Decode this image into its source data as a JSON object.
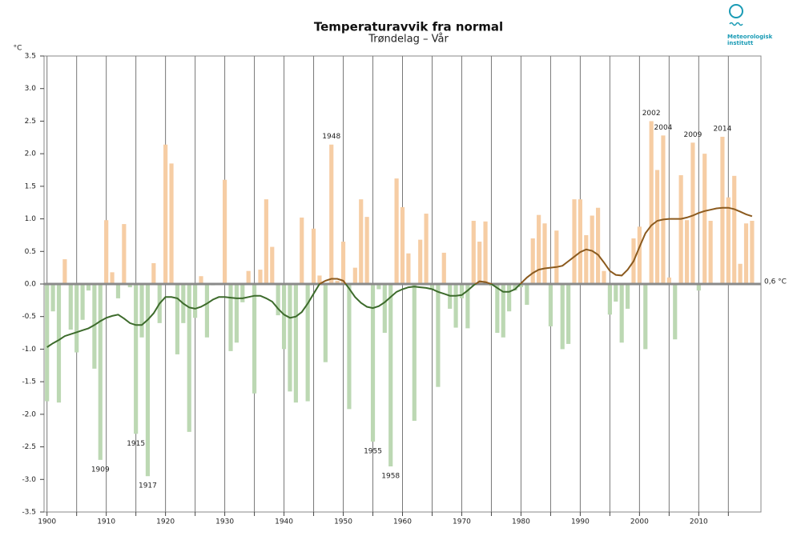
{
  "chart_data": {
    "type": "bar",
    "title": "Temperaturavvik fra normal",
    "subtitle": "Trøndelag – Vår",
    "y_unit": "°C",
    "reference_label": "0,6 °C",
    "logo": [
      "Meteorologisk",
      "institutt"
    ],
    "x": [
      1900,
      1901,
      1902,
      1903,
      1904,
      1905,
      1906,
      1907,
      1908,
      1909,
      1910,
      1911,
      1912,
      1913,
      1914,
      1915,
      1916,
      1917,
      1918,
      1919,
      1920,
      1921,
      1922,
      1923,
      1924,
      1925,
      1926,
      1927,
      1928,
      1929,
      1930,
      1931,
      1932,
      1933,
      1934,
      1935,
      1936,
      1937,
      1938,
      1939,
      1940,
      1941,
      1942,
      1943,
      1944,
      1945,
      1946,
      1947,
      1948,
      1949,
      1950,
      1951,
      1952,
      1953,
      1954,
      1955,
      1956,
      1957,
      1958,
      1959,
      1960,
      1961,
      1962,
      1963,
      1964,
      1965,
      1966,
      1967,
      1968,
      1969,
      1970,
      1971,
      1972,
      1973,
      1974,
      1975,
      1976,
      1977,
      1978,
      1979,
      1980,
      1981,
      1982,
      1983,
      1984,
      1985,
      1986,
      1987,
      1988,
      1989,
      1990,
      1991,
      1992,
      1993,
      1994,
      1995,
      1996,
      1997,
      1998,
      1999,
      2000,
      2001,
      2002,
      2003,
      2004,
      2005,
      2006,
      2007,
      2008,
      2009,
      2010,
      2011,
      2012,
      2013,
      2014,
      2015,
      2016,
      2017,
      2018,
      2019
    ],
    "values": [
      -1.8,
      -0.42,
      -1.82,
      0.38,
      -0.7,
      -1.05,
      -0.55,
      -0.1,
      -1.3,
      -2.7,
      0.98,
      0.18,
      -0.22,
      0.92,
      -0.05,
      -2.3,
      -0.82,
      -2.95,
      0.32,
      -0.6,
      2.14,
      1.85,
      -1.08,
      -0.6,
      -2.27,
      -0.52,
      0.12,
      -0.82,
      -0.02,
      0.0,
      1.6,
      -1.03,
      -0.9,
      -0.28,
      0.2,
      -1.68,
      0.22,
      1.3,
      0.57,
      -0.48,
      -1.0,
      -1.65,
      -1.82,
      1.02,
      -1.8,
      0.85,
      0.13,
      -1.2,
      2.14,
      0.05,
      0.65,
      -1.92,
      0.25,
      1.3,
      1.03,
      -2.42,
      -0.08,
      -0.75,
      -2.8,
      1.62,
      1.18,
      0.47,
      -2.1,
      0.68,
      1.08,
      -0.08,
      -1.58,
      0.48,
      -0.38,
      -0.67,
      -0.22,
      -0.68,
      0.97,
      0.65,
      0.96,
      -0.03,
      -0.75,
      -0.82,
      -0.42,
      -0.1,
      -0.05,
      -0.32,
      0.7,
      1.06,
      0.93,
      -0.65,
      0.82,
      -1.0,
      -0.92,
      1.3,
      1.3,
      0.75,
      1.05,
      1.17,
      0.2,
      -0.47,
      -0.27,
      -0.9,
      -0.38,
      0.7,
      0.88,
      -1.0,
      2.5,
      1.75,
      2.28,
      0.1,
      -0.85,
      1.67,
      0.98,
      2.17,
      -0.1,
      2.0,
      0.97,
      0.0,
      2.26,
      1.33,
      1.66,
      0.31,
      0.93,
      0.97
    ],
    "smoothed": [
      -0.97,
      -0.91,
      -0.86,
      -0.8,
      -0.77,
      -0.74,
      -0.71,
      -0.68,
      -0.63,
      -0.57,
      -0.52,
      -0.49,
      -0.47,
      -0.53,
      -0.6,
      -0.63,
      -0.63,
      -0.55,
      -0.45,
      -0.3,
      -0.2,
      -0.2,
      -0.22,
      -0.3,
      -0.36,
      -0.38,
      -0.35,
      -0.3,
      -0.24,
      -0.2,
      -0.2,
      -0.21,
      -0.22,
      -0.22,
      -0.2,
      -0.18,
      -0.18,
      -0.22,
      -0.27,
      -0.38,
      -0.47,
      -0.52,
      -0.5,
      -0.43,
      -0.3,
      -0.15,
      0.0,
      0.05,
      0.08,
      0.08,
      0.05,
      -0.07,
      -0.2,
      -0.29,
      -0.35,
      -0.37,
      -0.34,
      -0.28,
      -0.2,
      -0.12,
      -0.08,
      -0.05,
      -0.04,
      -0.05,
      -0.06,
      -0.08,
      -0.12,
      -0.15,
      -0.18,
      -0.18,
      -0.17,
      -0.1,
      -0.02,
      0.04,
      0.03,
      0.0,
      -0.06,
      -0.12,
      -0.12,
      -0.08,
      0.01,
      0.1,
      0.17,
      0.22,
      0.24,
      0.25,
      0.26,
      0.28,
      0.35,
      0.42,
      0.49,
      0.53,
      0.51,
      0.45,
      0.33,
      0.2,
      0.14,
      0.13,
      0.22,
      0.35,
      0.57,
      0.78,
      0.9,
      0.97,
      0.99,
      1.0,
      1.0,
      1.0,
      1.02,
      1.05,
      1.09,
      1.12,
      1.14,
      1.16,
      1.17,
      1.17,
      1.15,
      1.11,
      1.07,
      1.04
    ],
    "positive_color": "#f6cda4",
    "negative_color": "#bcd8b3",
    "line_positive_color": "#8b5a1e",
    "line_negative_color": "#3d6b2c",
    "annotations": [
      {
        "text": "1909",
        "x": 1909
      },
      {
        "text": "1915",
        "x": 1915
      },
      {
        "text": "1917",
        "x": 1917
      },
      {
        "text": "1948",
        "x": 1948
      },
      {
        "text": "1955",
        "x": 1955
      },
      {
        "text": "1958",
        "x": 1958
      },
      {
        "text": "2002",
        "x": 2002
      },
      {
        "text": "2004",
        "x": 2004
      },
      {
        "text": "2009",
        "x": 2009
      },
      {
        "text": "2014",
        "x": 2014
      }
    ],
    "xlim": [
      1899.5,
      2020.5
    ],
    "xticks": [
      1900,
      1910,
      1920,
      1930,
      1940,
      1950,
      1960,
      1970,
      1980,
      1990,
      2000,
      2010
    ],
    "xminor_ticks": [
      1905,
      1915,
      1925,
      1935,
      1945,
      1955,
      1965,
      1975,
      1985,
      1995,
      2005,
      2015
    ],
    "ylim": [
      -3.5,
      3.5
    ],
    "yticks": [
      {
        "value": -3.5,
        "label": "-3.5"
      },
      {
        "value": -3,
        "label": "-3.0"
      },
      {
        "value": -2.5,
        "label": "-2.5"
      },
      {
        "value": -2,
        "label": "-2.0"
      },
      {
        "value": -1.5,
        "label": "-1.5"
      },
      {
        "value": -1,
        "label": "-1.0"
      },
      {
        "value": -0.5,
        "label": "-0.5"
      },
      {
        "value": 0,
        "label": "0.0"
      },
      0.5,
      {
        "value": 1,
        "label": "1.0"
      },
      1.5,
      {
        "value": 2,
        "label": "2.0"
      },
      2.5,
      {
        "value": 3,
        "label": "3.0"
      },
      3.5
    ],
    "grid": true
  }
}
